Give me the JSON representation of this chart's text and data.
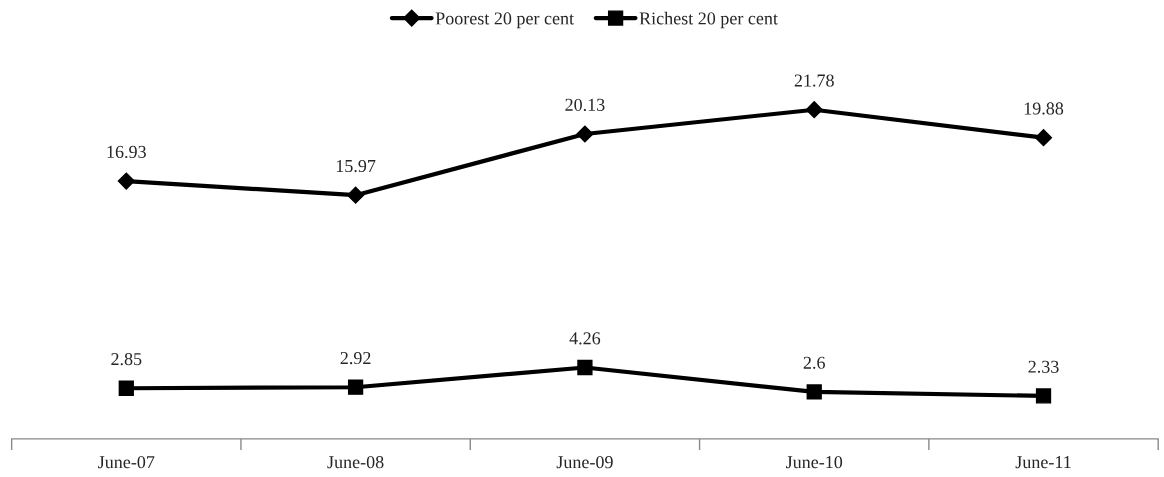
{
  "chart_data": {
    "type": "line",
    "categories": [
      "June-07",
      "June-08",
      "June-09",
      "June-10",
      "June-11"
    ],
    "series": [
      {
        "name": "Poorest 20 per cent",
        "color": "#000000",
        "marker": "diamond",
        "values": [
          16.93,
          15.97,
          20.13,
          21.78,
          19.88
        ]
      },
      {
        "name": "Richest 20 per cent",
        "color": "#000000",
        "marker": "square",
        "values": [
          2.85,
          2.92,
          4.26,
          2.6,
          2.33
        ]
      }
    ],
    "tick_labels": "x",
    "data_labels": true,
    "legend": "top",
    "grid": false,
    "line_style": "solid"
  }
}
